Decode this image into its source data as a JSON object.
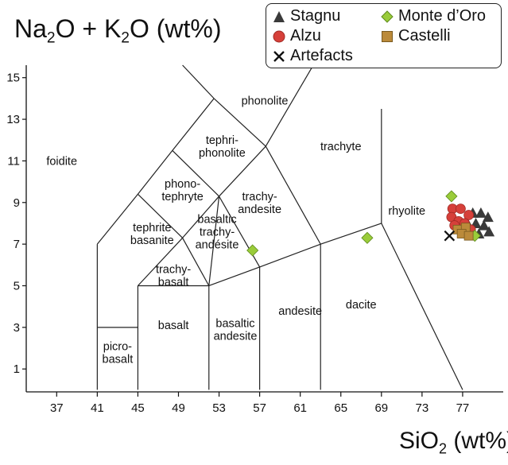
{
  "chart_data": {
    "type": "scatter",
    "xlabel_main": "SiO",
    "xlabel_sub": "2",
    "xlabel_unit": " (wt%)",
    "ylabel_parts": [
      "Na",
      "2",
      "O + K",
      "2",
      "O (wt%)"
    ],
    "x_ticks": [
      37,
      41,
      45,
      49,
      53,
      57,
      61,
      65,
      69,
      73,
      77
    ],
    "y_ticks": [
      1,
      3,
      5,
      7,
      9,
      11,
      13,
      15
    ],
    "xlim": [
      34,
      81
    ],
    "ylim": [
      -0.1,
      15.6
    ],
    "fields": [
      {
        "name": "foidite",
        "lines": [
          "foidite"
        ],
        "x": 37.5,
        "y": 11.0
      },
      {
        "name": "phonolite",
        "lines": [
          "phonolite"
        ],
        "x": 57.5,
        "y": 13.9
      },
      {
        "name": "tephriphonolite",
        "lines": [
          "tephri-",
          "phonolite"
        ],
        "x": 53.3,
        "y": 11.7
      },
      {
        "name": "trachyte",
        "lines": [
          "trachyte"
        ],
        "x": 65.0,
        "y": 11.7
      },
      {
        "name": "phonotephryte",
        "lines": [
          "phono-",
          "tephryte"
        ],
        "x": 49.4,
        "y": 9.6
      },
      {
        "name": "trachyandesite",
        "lines": [
          "trachy-",
          "andesite"
        ],
        "x": 57.0,
        "y": 9.0
      },
      {
        "name": "rhyolite",
        "lines": [
          "rhyolite"
        ],
        "x": 71.5,
        "y": 8.6
      },
      {
        "name": "tephrite-basanite",
        "lines": [
          "tephrite",
          "basanite"
        ],
        "x": 46.4,
        "y": 7.5
      },
      {
        "name": "basaltic-trachyandesite",
        "lines": [
          "basaltic",
          "trachy-",
          "andésite"
        ],
        "x": 52.8,
        "y": 7.6
      },
      {
        "name": "trachybasalt",
        "lines": [
          "trachy-",
          "basalt"
        ],
        "x": 48.5,
        "y": 5.5
      },
      {
        "name": "basalt",
        "lines": [
          "basalt"
        ],
        "x": 48.5,
        "y": 3.1
      },
      {
        "name": "basaltic-andesite",
        "lines": [
          "basaltic",
          "andesite"
        ],
        "x": 54.6,
        "y": 2.9
      },
      {
        "name": "andesite",
        "lines": [
          "andesite"
        ],
        "x": 61.0,
        "y": 3.8
      },
      {
        "name": "dacite",
        "lines": [
          "dacite"
        ],
        "x": 67.0,
        "y": 4.1
      },
      {
        "name": "picrobasalt",
        "lines": [
          "picro-",
          "basalt"
        ],
        "x": 43.0,
        "y": 1.8
      }
    ],
    "series": [
      {
        "name": "Stagnu",
        "marker": "triangle",
        "color": "#3a3a3a",
        "x": [
          78.0,
          78.8,
          79.5,
          78.3,
          79.1,
          77.6,
          79.6,
          78.6
        ],
        "y": [
          8.5,
          8.5,
          8.3,
          8.0,
          7.9,
          7.9,
          7.6,
          7.5
        ]
      },
      {
        "name": "Alzu",
        "marker": "circle",
        "color": "#d6403a",
        "x": [
          76.0,
          76.8,
          75.9,
          77.6,
          76.6,
          77.2,
          76.2,
          77.8
        ],
        "y": [
          8.7,
          8.7,
          8.3,
          8.4,
          8.1,
          8.0,
          7.9,
          7.7
        ]
      },
      {
        "name": "Monte d’Oro",
        "marker": "diamond",
        "color": "#9acc3a",
        "x": [
          56.3,
          67.6,
          75.9,
          78.2
        ],
        "y": [
          6.7,
          7.3,
          9.3,
          7.4
        ]
      },
      {
        "name": "Castelli",
        "marker": "square",
        "color": "#bb8a3a",
        "x": [
          76.5,
          77.3,
          76.9,
          77.6
        ],
        "y": [
          7.7,
          7.8,
          7.5,
          7.4
        ]
      },
      {
        "name": "Artefacts",
        "marker": "cross",
        "color": "#111111",
        "x": [
          75.7
        ],
        "y": [
          7.4
        ]
      }
    ],
    "legend": "top-right",
    "grid": false
  }
}
